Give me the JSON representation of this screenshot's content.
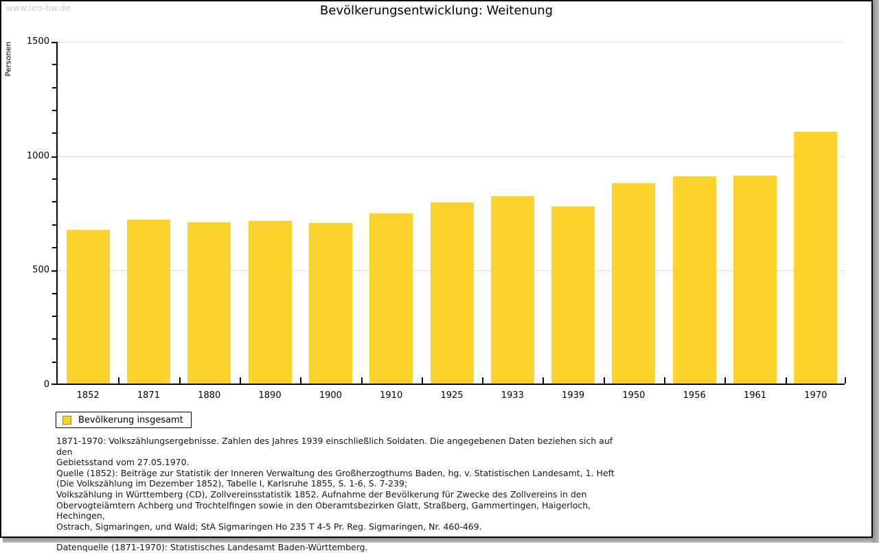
{
  "watermark": "www.leo-bw.de",
  "chart_data": {
    "type": "bar",
    "title": "Bevölkerungsentwicklung: Weitenung",
    "ylabel": "Personen",
    "xlabel": "",
    "categories": [
      "1852",
      "1871",
      "1880",
      "1890",
      "1900",
      "1910",
      "1925",
      "1933",
      "1939",
      "1950",
      "1956",
      "1961",
      "1970"
    ],
    "values": [
      672,
      716,
      704,
      710,
      703,
      745,
      792,
      818,
      775,
      876,
      905,
      908,
      1100
    ],
    "ylim": [
      0,
      1500
    ],
    "yticks": [
      0,
      500,
      1000,
      1500
    ],
    "minor_tick_step": 100,
    "grid": "horizontal-major",
    "legend": {
      "label": "Bevölkerung insgesamt",
      "position": "bottom-left"
    },
    "colors": {
      "bar": "#FCD32D",
      "swatch_border": "#A78B00",
      "gridline": "#DCDCDC",
      "axis": "#000000",
      "watermark": "#CCCCCC"
    }
  },
  "footer": {
    "notes": [
      "1871-1970: Volkszählungsergebnisse. Zahlen des Jahres 1939 einschließlich Soldaten. Die angegebenen Daten beziehen sich auf den",
      "Gebietsstand vom 27.05.1970.",
      "Quelle (1852): Beiträge zur Statistik der Inneren Verwaltung des Großherzogthums Baden, hg. v. Statistischen Landesamt, 1. Heft",
      "(Die Volkszählung im Dezember 1852), Tabelle I, Karlsruhe 1855, S. 1-6, S. 7-239;",
      "Volkszählung in Württemberg (CD), Zollvereinsstatistik 1852. Aufnahme der Bevölkerung für Zwecke des Zollvereins in den",
      "Obervogteiämtern Achberg und Trochtelfingen sowie in den Oberamtsbezirken Glatt, Straßberg, Gammertingen, Haigerloch, Hechingen,",
      "Ostrach, Sigmaringen, und Wald; StA Sigmaringen Ho 235 T 4-5 Pr. Reg. Sigmaringen, Nr. 460-469."
    ],
    "datasource": "Datenquelle (1871-1970): Statistisches Landesamt Baden-Württemberg."
  }
}
